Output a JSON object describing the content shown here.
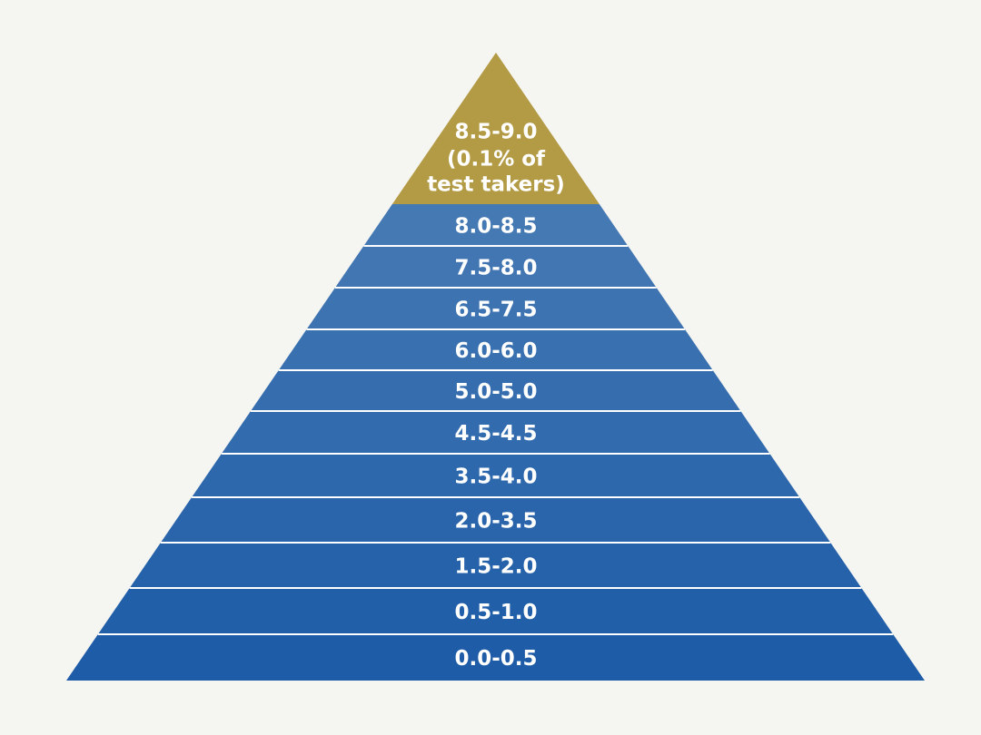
{
  "pyramid": {
    "top_tier": {
      "label_lines": [
        "8.5-9.0",
        "(0.1% of",
        "test takers)"
      ],
      "color": "#b39b45"
    },
    "tiers": [
      {
        "label": "8.0-8.5"
      },
      {
        "label": "7.5-8.0"
      },
      {
        "label": "6.5-7.5"
      },
      {
        "label": "6.0-6.0"
      },
      {
        "label": "5.0-5.0"
      },
      {
        "label": "4.5-4.5"
      },
      {
        "label": "3.5-4.0"
      },
      {
        "label": "2.0-3.5"
      },
      {
        "label": "1.5-2.0"
      },
      {
        "label": "0.5-1.0"
      },
      {
        "label": "0.0-0.5"
      }
    ],
    "colors": {
      "tier_top": "#4579b3",
      "tier_bottom": "#1e5ca8",
      "divider": "#ffffff",
      "background": "#f5f5f2"
    }
  }
}
